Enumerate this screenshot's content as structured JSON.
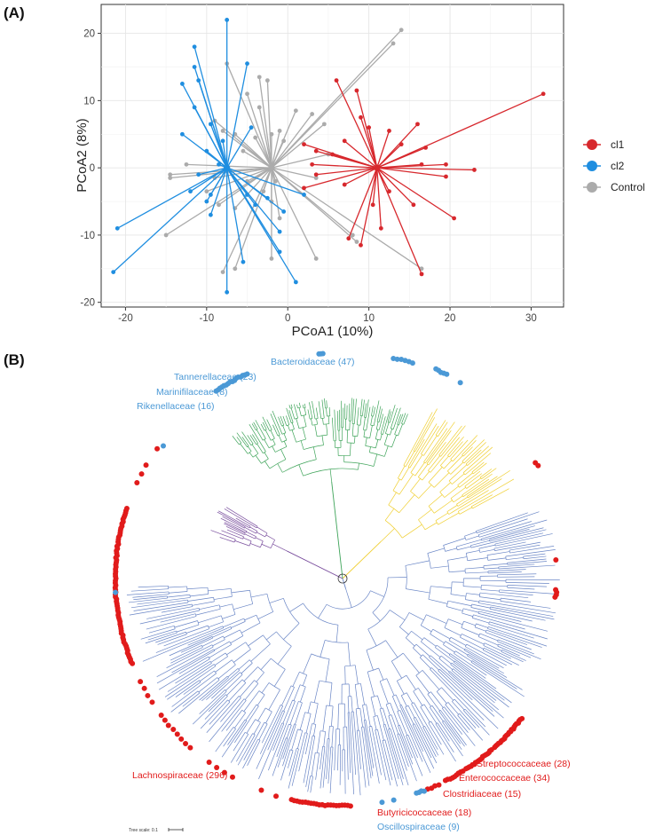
{
  "panel_a": {
    "label": "(A)",
    "chart_data": {
      "type": "scatter",
      "title": "",
      "xlabel": "PCoA1 (10%)",
      "ylabel": "PCoA2 (8%)",
      "xlim": [
        -23,
        34
      ],
      "ylim": [
        -20.7,
        24.3
      ],
      "x_ticks": [
        -20,
        -10,
        0,
        10,
        20,
        30
      ],
      "y_ticks": [
        -20,
        -10,
        0,
        10,
        20
      ],
      "grid": true,
      "legend_position": "right",
      "series": [
        {
          "name": "cl1",
          "color": "#d7282d",
          "centroid": [
            11,
            0
          ],
          "points": [
            [
              6,
              13
            ],
            [
              8.5,
              11.5
            ],
            [
              9,
              7.5
            ],
            [
              10,
              6
            ],
            [
              16,
              6.5
            ],
            [
              7,
              4
            ],
            [
              12.5,
              5.5
            ],
            [
              17,
              3
            ],
            [
              19.5,
              0.5
            ],
            [
              23,
              -0.3
            ],
            [
              16.5,
              0.5
            ],
            [
              19.5,
              -1.3
            ],
            [
              2,
              3.5
            ],
            [
              3.5,
              2.5
            ],
            [
              5.5,
              2
            ],
            [
              3,
              0.5
            ],
            [
              2,
              -3
            ],
            [
              7,
              -2.5
            ],
            [
              12.5,
              -3.5
            ],
            [
              15.5,
              -5.5
            ],
            [
              20.5,
              -7.5
            ],
            [
              10.5,
              -5.5
            ],
            [
              11.5,
              -9
            ],
            [
              9,
              -11.5
            ],
            [
              7.5,
              -10.5
            ],
            [
              16.5,
              -15.8
            ],
            [
              31.5,
              11
            ],
            [
              3.5,
              -1
            ],
            [
              14,
              3.5
            ]
          ]
        },
        {
          "name": "cl2",
          "color": "#1f8ee0",
          "centroid": [
            -7.5,
            0
          ],
          "points": [
            [
              -7.5,
              22
            ],
            [
              -11.5,
              18
            ],
            [
              -11.5,
              15
            ],
            [
              -11,
              13
            ],
            [
              -13,
              12.5
            ],
            [
              -11.5,
              9
            ],
            [
              -5,
              15.5
            ],
            [
              -13,
              5
            ],
            [
              -9.5,
              6.5
            ],
            [
              -8,
              4
            ],
            [
              -10,
              2.5
            ],
            [
              -21,
              -9
            ],
            [
              -21.5,
              -15.5
            ],
            [
              -12,
              -3.5
            ],
            [
              -10,
              -5
            ],
            [
              -9.5,
              -7
            ],
            [
              -9.5,
              -4
            ],
            [
              -5.5,
              -14
            ],
            [
              -7.5,
              -18.5
            ],
            [
              1,
              -17
            ],
            [
              -1,
              -12.5
            ],
            [
              -1,
              -9.5
            ],
            [
              -0.5,
              -6.5
            ],
            [
              -4,
              -5.5
            ],
            [
              -5,
              -4
            ],
            [
              -2.5,
              -4.5
            ],
            [
              -11,
              -1
            ],
            [
              -8.5,
              0.5
            ],
            [
              2,
              -4
            ],
            [
              -4.5,
              6
            ]
          ]
        },
        {
          "name": "Control",
          "color": "#ababab",
          "centroid": [
            -2,
            0
          ],
          "points": [
            [
              -7.5,
              15.5
            ],
            [
              -3.5,
              13.5
            ],
            [
              -2.5,
              13
            ],
            [
              -5,
              11
            ],
            [
              -3.5,
              9
            ],
            [
              3,
              8
            ],
            [
              1,
              8.5
            ],
            [
              13,
              18.5
            ],
            [
              14,
              20.5
            ],
            [
              -9,
              7
            ],
            [
              -8,
              5.5
            ],
            [
              -6.5,
              5
            ],
            [
              -4,
              4.5
            ],
            [
              -2,
              5
            ],
            [
              -1,
              5.5
            ],
            [
              -0.5,
              4
            ],
            [
              -14.5,
              -1
            ],
            [
              -12.5,
              0.5
            ],
            [
              -14.5,
              -1.5
            ],
            [
              -15,
              -10
            ],
            [
              -10,
              -3.5
            ],
            [
              -8.5,
              -5.5
            ],
            [
              -6.5,
              -6
            ],
            [
              -9,
              -1.5
            ],
            [
              -5,
              -2
            ],
            [
              -3,
              -3.5
            ],
            [
              -2,
              -5
            ],
            [
              -1,
              -7.5
            ],
            [
              -2,
              -13.5
            ],
            [
              -6.5,
              -15
            ],
            [
              -8,
              -15.5
            ],
            [
              3.5,
              -13.5
            ],
            [
              8,
              -10
            ],
            [
              8.5,
              -11
            ],
            [
              16.5,
              -15
            ],
            [
              5,
              2
            ],
            [
              3.5,
              -1.5
            ],
            [
              -5.5,
              2.5
            ],
            [
              4.5,
              6.5
            ],
            [
              -1.5,
              -2
            ]
          ]
        }
      ],
      "legend": [
        {
          "name": "cl1",
          "color": "#d7282d"
        },
        {
          "name": "cl2",
          "color": "#1f8ee0"
        },
        {
          "name": "Control",
          "color": "#ababab"
        }
      ]
    }
  },
  "panel_b": {
    "label": "(B)",
    "colors": {
      "bacteroidota_clade": "#3fa45a",
      "firmicutes_clade": "#6a86c6",
      "yellow_clade": "#f0cf31",
      "purple_clade": "#7a4f9e",
      "ring_cl1": "#e11b1b",
      "ring_cl2": "#4b99d6"
    },
    "families": [
      {
        "name": "Tannerellaceae (23)",
        "color": "#4b99d6"
      },
      {
        "name": "Bacteroidaceae (47)",
        "color": "#4b99d6"
      },
      {
        "name": "Marinifilaceae (8)",
        "color": "#4b99d6"
      },
      {
        "name": "Rikenellaceae (16)",
        "color": "#4b99d6"
      },
      {
        "name": "Lachnospiraceae (296)",
        "color": "#e11b1b"
      },
      {
        "name": "Streptococcaceae (28)",
        "color": "#e11b1b"
      },
      {
        "name": "Enterococcaceae (34)",
        "color": "#e11b1b"
      },
      {
        "name": "Clostridiaceae (15)",
        "color": "#e11b1b"
      },
      {
        "name": "Butyricicoccaceae (18)",
        "color": "#e11b1b"
      },
      {
        "name": "Oscillospiraceae (9)",
        "color": "#4b99d6"
      }
    ],
    "tree_scale_label": "Tree scale: 0.1"
  }
}
